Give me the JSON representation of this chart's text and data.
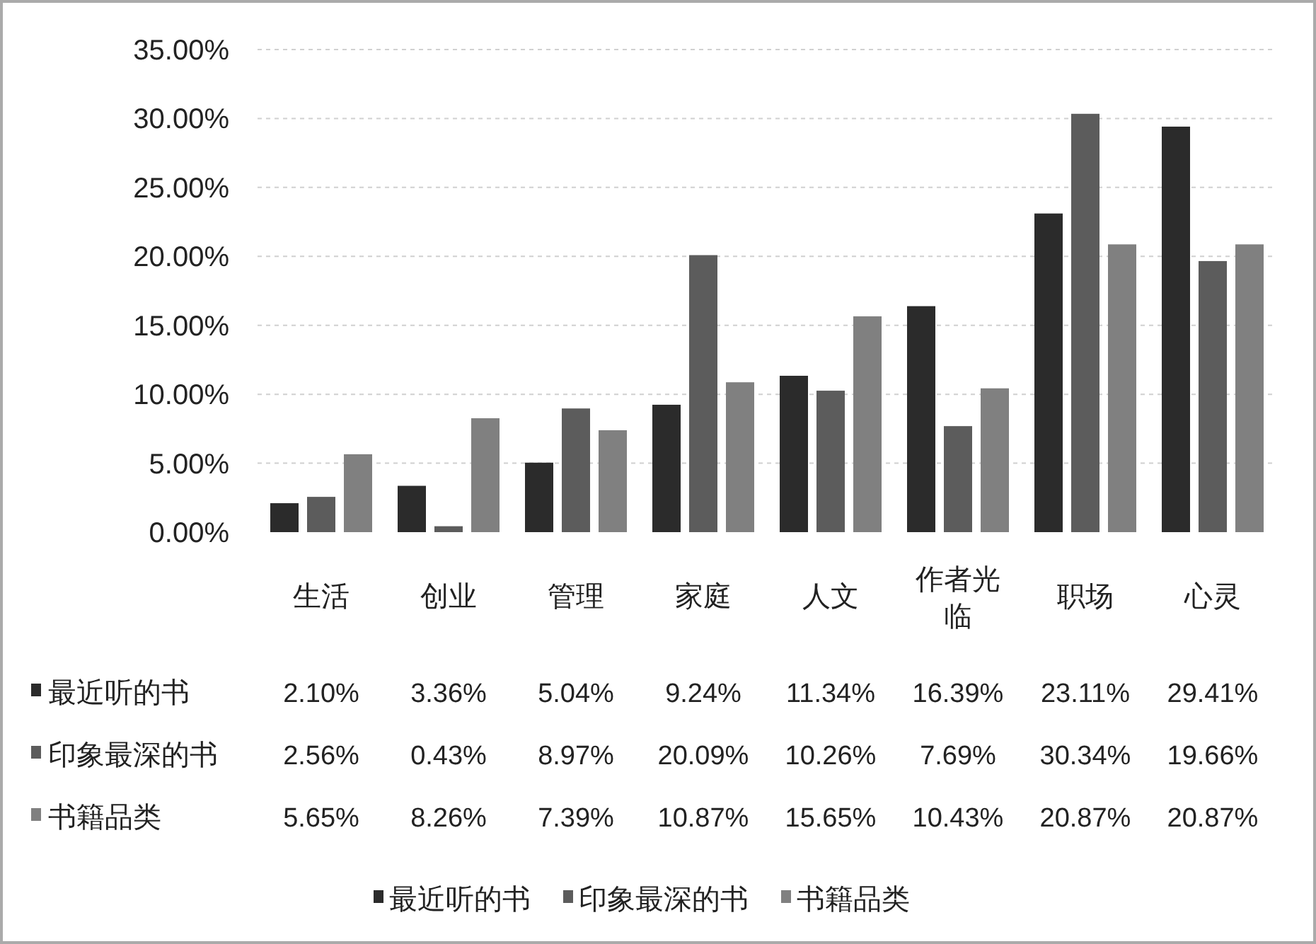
{
  "chart_data": {
    "type": "bar",
    "categories": [
      "生活",
      "创业",
      "管理",
      "家庭",
      "人文",
      "作者光临",
      "职场",
      "心灵"
    ],
    "series": [
      {
        "name": "最近听的书",
        "color": "#2b2b2b",
        "values": [
          2.1,
          3.36,
          5.04,
          9.24,
          11.34,
          16.39,
          23.11,
          29.41
        ],
        "value_labels": [
          "2.10%",
          "3.36%",
          "5.04%",
          "9.24%",
          "11.34%",
          "16.39%",
          "23.11%",
          "29.41%"
        ]
      },
      {
        "name": "印象最深的书",
        "color": "#5c5c5c",
        "values": [
          2.56,
          0.43,
          8.97,
          20.09,
          10.26,
          7.69,
          30.34,
          19.66
        ],
        "value_labels": [
          "2.56%",
          "0.43%",
          "8.97%",
          "20.09%",
          "10.26%",
          "7.69%",
          "30.34%",
          "19.66%"
        ]
      },
      {
        "name": "书籍品类",
        "color": "#808080",
        "values": [
          5.65,
          8.26,
          7.39,
          10.87,
          15.65,
          10.43,
          20.87,
          20.87
        ],
        "value_labels": [
          "5.65%",
          "8.26%",
          "7.39%",
          "10.87%",
          "15.65%",
          "10.43%",
          "20.87%",
          "20.87%"
        ]
      }
    ],
    "ylim": [
      0,
      35
    ],
    "yticks": [
      {
        "value": 0,
        "label": "0.00%"
      },
      {
        "value": 5,
        "label": "5.00%"
      },
      {
        "value": 10,
        "label": "10.00%"
      },
      {
        "value": 15,
        "label": "15.00%"
      },
      {
        "value": 20,
        "label": "20.00%"
      },
      {
        "value": 25,
        "label": "25.00%"
      },
      {
        "value": 30,
        "label": "30.00%"
      },
      {
        "value": 35,
        "label": "35.00%"
      }
    ],
    "grid": "y",
    "legend": "bottom"
  }
}
